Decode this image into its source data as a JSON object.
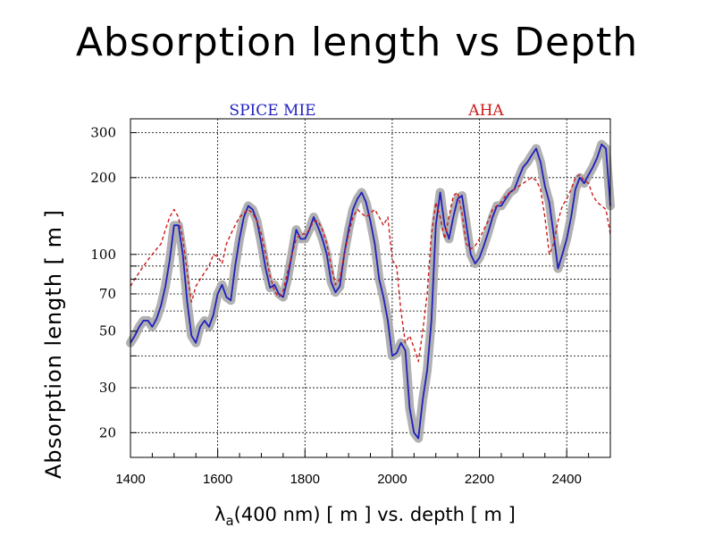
{
  "slide": {
    "title": "Absorption length vs Depth"
  },
  "chart_data": {
    "type": "line",
    "xlabel_prefix": "λ",
    "xlabel_sub": "a",
    "xlabel_rest": "(400 nm) [ m ] vs. depth [ m ]",
    "ylabel": "Absorption length [ m ]",
    "xlim": [
      1400,
      2500
    ],
    "ylim": [
      16,
      340
    ],
    "yscale": "log",
    "grid": true,
    "legend_position": "top",
    "x_ticks": [
      1400,
      1600,
      1800,
      2000,
      2200,
      2400
    ],
    "x_tick_labels": [
      "1400",
      "1600",
      "1800",
      "2000",
      "2200",
      "2400"
    ],
    "y_ticks": [
      20,
      30,
      50,
      70,
      100,
      200,
      300
    ],
    "y_tick_labels": [
      "20",
      "30",
      "50",
      "70",
      "100",
      "200",
      "300"
    ],
    "y_grid_only": [
      40,
      60,
      80,
      90
    ],
    "series": [
      {
        "name": "SPICE MIE",
        "color": "#1f1fbf",
        "dash": "solid",
        "band_color": "#a8a8a8",
        "x": [
          1400,
          1410,
          1420,
          1430,
          1440,
          1450,
          1460,
          1470,
          1480,
          1490,
          1500,
          1510,
          1520,
          1530,
          1540,
          1550,
          1560,
          1570,
          1580,
          1590,
          1600,
          1610,
          1620,
          1630,
          1640,
          1650,
          1660,
          1670,
          1680,
          1690,
          1700,
          1710,
          1720,
          1730,
          1740,
          1750,
          1760,
          1770,
          1780,
          1790,
          1800,
          1810,
          1820,
          1830,
          1840,
          1850,
          1860,
          1870,
          1880,
          1890,
          1900,
          1910,
          1920,
          1930,
          1940,
          1950,
          1960,
          1970,
          1980,
          1990,
          2000,
          2010,
          2020,
          2030,
          2040,
          2050,
          2060,
          2070,
          2080,
          2090,
          2100,
          2110,
          2120,
          2130,
          2140,
          2150,
          2160,
          2170,
          2180,
          2190,
          2200,
          2210,
          2220,
          2230,
          2240,
          2250,
          2260,
          2270,
          2280,
          2290,
          2300,
          2310,
          2320,
          2330,
          2340,
          2350,
          2360,
          2370,
          2380,
          2390,
          2400,
          2410,
          2420,
          2430,
          2440,
          2450,
          2460,
          2470,
          2480,
          2490,
          2500
        ],
        "y": [
          45,
          48,
          52,
          55,
          55,
          52,
          56,
          63,
          75,
          95,
          130,
          130,
          100,
          65,
          48,
          45,
          52,
          55,
          52,
          58,
          70,
          76,
          68,
          66,
          90,
          115,
          140,
          155,
          150,
          135,
          110,
          88,
          74,
          76,
          70,
          68,
          80,
          100,
          125,
          115,
          115,
          125,
          140,
          128,
          115,
          100,
          78,
          71,
          75,
          100,
          125,
          150,
          165,
          175,
          160,
          135,
          110,
          80,
          68,
          55,
          40,
          41,
          45,
          42,
          25,
          20,
          19,
          27,
          35,
          55,
          130,
          175,
          130,
          115,
          140,
          165,
          170,
          130,
          100,
          92,
          97,
          108,
          122,
          140,
          155,
          155,
          165,
          175,
          180,
          200,
          220,
          230,
          245,
          260,
          230,
          185,
          160,
          120,
          88,
          100,
          115,
          140,
          180,
          200,
          190,
          205,
          220,
          240,
          270,
          260,
          155
        ]
      },
      {
        "name": "AHA",
        "color": "#cc1a1a",
        "dash": "dashed",
        "x": [
          1400,
          1410,
          1420,
          1430,
          1440,
          1450,
          1460,
          1470,
          1480,
          1490,
          1500,
          1510,
          1520,
          1530,
          1540,
          1550,
          1560,
          1570,
          1580,
          1590,
          1600,
          1610,
          1620,
          1630,
          1640,
          1650,
          1660,
          1670,
          1680,
          1690,
          1700,
          1710,
          1720,
          1730,
          1740,
          1750,
          1760,
          1770,
          1780,
          1790,
          1800,
          1810,
          1820,
          1830,
          1840,
          1850,
          1860,
          1870,
          1880,
          1890,
          1900,
          1910,
          1920,
          1930,
          1940,
          1950,
          1960,
          1970,
          1980,
          1990,
          2000,
          2010,
          2020,
          2030,
          2040,
          2050,
          2060,
          2070,
          2080,
          2090,
          2100,
          2110,
          2120,
          2130,
          2140,
          2150,
          2160,
          2170,
          2180,
          2190,
          2200,
          2210,
          2220,
          2230,
          2240,
          2250,
          2260,
          2270,
          2280,
          2290,
          2300,
          2310,
          2320,
          2330,
          2340,
          2350,
          2360,
          2370,
          2380,
          2390,
          2400,
          2410,
          2420,
          2430,
          2440,
          2450,
          2460,
          2470,
          2480,
          2490,
          2500
        ],
        "y": [
          75,
          80,
          85,
          90,
          95,
          100,
          105,
          110,
          125,
          140,
          150,
          140,
          115,
          85,
          65,
          75,
          80,
          85,
          90,
          100,
          98,
          92,
          110,
          120,
          130,
          140,
          145,
          150,
          145,
          135,
          120,
          100,
          82,
          72,
          68,
          72,
          85,
          100,
          115,
          120,
          120,
          125,
          135,
          135,
          125,
          110,
          90,
          76,
          80,
          100,
          120,
          140,
          150,
          145,
          140,
          145,
          150,
          140,
          130,
          140,
          95,
          90,
          60,
          45,
          48,
          43,
          38,
          50,
          70,
          120,
          160,
          140,
          115,
          140,
          170,
          175,
          145,
          110,
          105,
          108,
          115,
          125,
          135,
          150,
          155,
          160,
          170,
          175,
          180,
          185,
          190,
          195,
          200,
          195,
          180,
          140,
          100,
          110,
          135,
          155,
          165,
          180,
          200,
          205,
          195,
          190,
          170,
          160,
          155,
          150,
          120
        ]
      }
    ]
  }
}
